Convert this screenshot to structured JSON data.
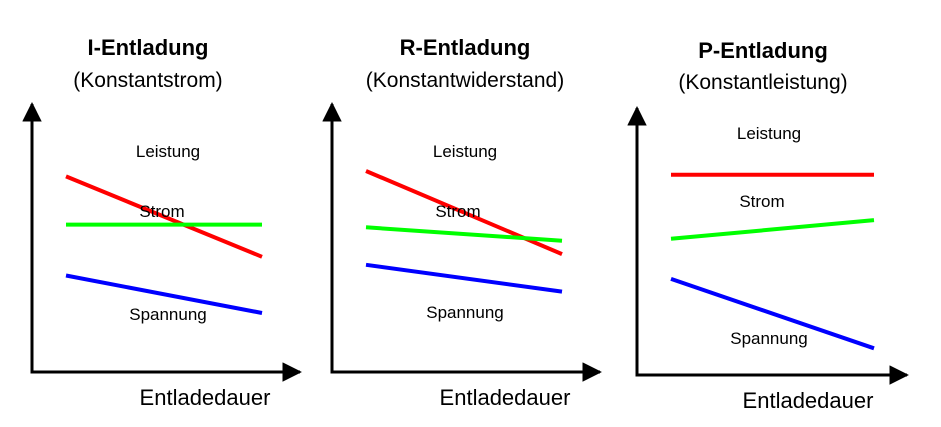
{
  "chart_data": [
    {
      "type": "line",
      "title": "I-Entladung",
      "subtitle": "(Konstantstrom)",
      "xlabel": "Entladedauer",
      "ylabel": "",
      "grid": false,
      "legend": "none",
      "x": [
        0,
        1
      ],
      "series": [
        {
          "name": "Leistung",
          "values": [
            0.73,
            0.43
          ],
          "color": "#ff0000"
        },
        {
          "name": "Strom",
          "values": [
            0.55,
            0.55
          ],
          "color": "#00ff00"
        },
        {
          "name": "Spannung",
          "values": [
            0.36,
            0.22
          ],
          "color": "#0000ff"
        }
      ]
    },
    {
      "type": "line",
      "title": "R-Entladung",
      "subtitle": "(Konstantwiderstand)",
      "xlabel": "Entladedauer",
      "ylabel": "",
      "grid": false,
      "legend": "none",
      "x": [
        0,
        1
      ],
      "series": [
        {
          "name": "Leistung",
          "values": [
            0.75,
            0.44
          ],
          "color": "#ff0000"
        },
        {
          "name": "Strom",
          "values": [
            0.54,
            0.49
          ],
          "color": "#00ff00"
        },
        {
          "name": "Spannung",
          "values": [
            0.4,
            0.3
          ],
          "color": "#0000ff"
        }
      ]
    },
    {
      "type": "line",
      "title": "P-Entladung",
      "subtitle": "(Konstantleistung)",
      "xlabel": "Entladedauer",
      "ylabel": "",
      "grid": false,
      "legend": "none",
      "x": [
        0,
        1
      ],
      "series": [
        {
          "name": "Leistung",
          "values": [
            0.75,
            0.75
          ],
          "color": "#ff0000"
        },
        {
          "name": "Strom",
          "values": [
            0.51,
            0.58
          ],
          "color": "#00ff00"
        },
        {
          "name": "Spannung",
          "values": [
            0.36,
            0.1
          ],
          "color": "#0000ff"
        }
      ]
    }
  ]
}
